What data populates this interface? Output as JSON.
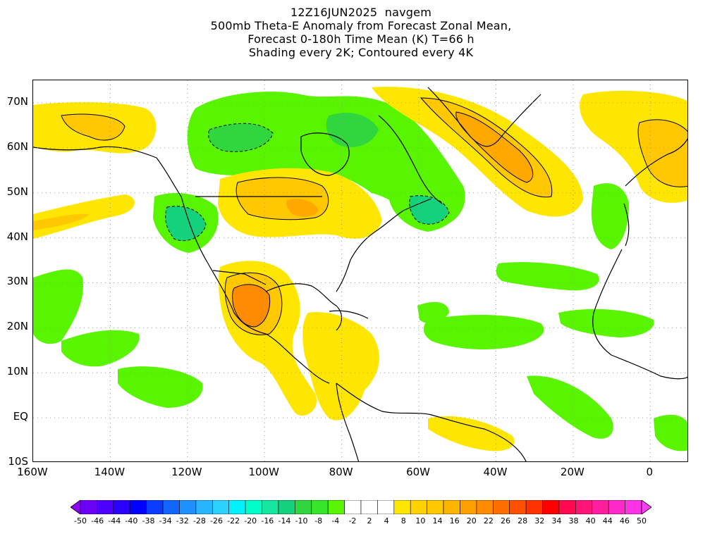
{
  "title": {
    "line1": "12Z16JUN2025  navgem",
    "line2": "500mb Theta-E Anomaly from Forecast Zonal Mean,",
    "line3": "Forecast 0-180h Time Mean (K) T=66 h",
    "line4": "Shading every 2K; Contoured every 4K"
  },
  "map": {
    "lat_labels": [
      "70N",
      "60N",
      "50N",
      "40N",
      "30N",
      "20N",
      "10N",
      "EQ",
      "10S"
    ],
    "lon_labels": [
      "160W",
      "140W",
      "120W",
      "100W",
      "80W",
      "60W",
      "40W",
      "20W",
      "0"
    ],
    "lat_values": [
      70,
      60,
      50,
      40,
      30,
      20,
      10,
      0,
      -10
    ],
    "lon_values": [
      -160,
      -140,
      -120,
      -100,
      -80,
      -60,
      -40,
      -20,
      0
    ],
    "extent": {
      "lon_min": -160,
      "lon_max": 10,
      "lat_min": -10,
      "lat_max": 75
    },
    "colors": {
      "light_green": "#59f500",
      "green": "#2fd63d",
      "teal_green": "#14d17c",
      "yellow": "#ffe600",
      "gold": "#ffc800",
      "orange_light": "#ffa800",
      "orange": "#ff8c00"
    }
  },
  "colorbar": {
    "labels": [
      "-50",
      "-46",
      "-44",
      "-40",
      "-38",
      "-34",
      "-32",
      "-28",
      "-26",
      "-22",
      "-20",
      "-16",
      "-14",
      "-10",
      "-8",
      "-4",
      "-2",
      "2",
      "4",
      "8",
      "10",
      "14",
      "16",
      "20",
      "22",
      "26",
      "28",
      "32",
      "34",
      "38",
      "40",
      "44",
      "46",
      "50"
    ],
    "colors": [
      "#8a00f0",
      "#6c00f5",
      "#4d00ff",
      "#2a00ff",
      "#0000ff",
      "#0a3cff",
      "#1064ff",
      "#1e90ff",
      "#28b4ff",
      "#2ad2ff",
      "#00f0ff",
      "#00ffc8",
      "#14e6a0",
      "#14d17c",
      "#2fd63d",
      "#37e628",
      "#59f500",
      "#ffffff",
      "#ffffff",
      "#ffffff",
      "#ffe600",
      "#ffd200",
      "#ffc800",
      "#ffb400",
      "#ffa000",
      "#ff8c00",
      "#ff6e00",
      "#ff5000",
      "#ff3200",
      "#ff0000",
      "#ff0a50",
      "#ff1478",
      "#ff1ea0",
      "#ff28c8",
      "#ff32e6",
      "#ff3cff"
    ]
  }
}
